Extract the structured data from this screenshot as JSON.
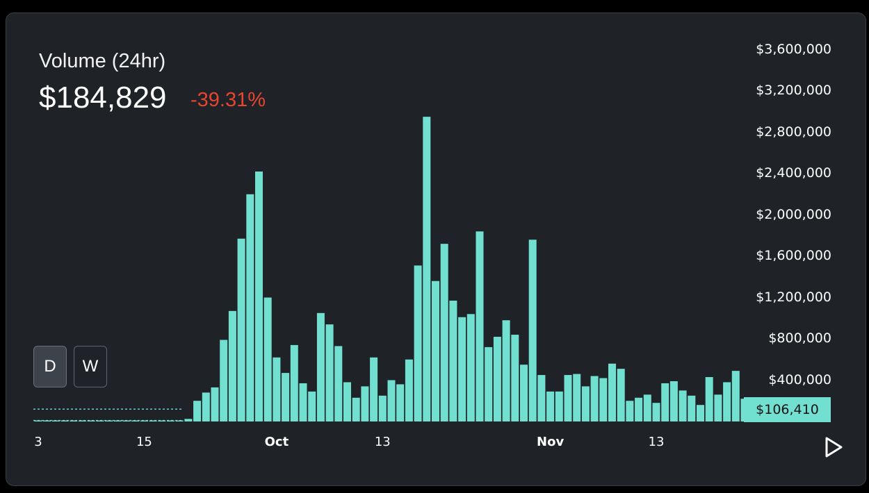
{
  "header": {
    "title": "Volume (24hr)",
    "value": "$184,829",
    "change": "-39.31%"
  },
  "timeframe": {
    "options": [
      "D",
      "W"
    ],
    "selected": "D"
  },
  "current_label": "$106,410",
  "colors": {
    "bar": "#72e0d1",
    "negative": "#e8452f",
    "background": "#1f2226"
  },
  "icons": {
    "play": "play-icon"
  },
  "chart_data": {
    "type": "bar",
    "title": "Volume (24hr)",
    "y_tick_labels": [
      "$3,600,000",
      "$3,200,000",
      "$2,800,000",
      "$2,400,000",
      "$2,000,000",
      "$1,600,000",
      "$1,200,000",
      "$800,000",
      "$400,000"
    ],
    "y_ticks": [
      3600000,
      3200000,
      2800000,
      2400000,
      2000000,
      1600000,
      1200000,
      800000,
      400000
    ],
    "x_tick_labels": [
      {
        "label": "3",
        "index": 0
      },
      {
        "label": "15",
        "index": 12
      },
      {
        "label": "Oct",
        "index": 27
      },
      {
        "label": "13",
        "index": 39
      },
      {
        "label": "Nov",
        "index": 58
      },
      {
        "label": "13",
        "index": 70
      }
    ],
    "ylim": [
      0,
      3750000
    ],
    "values": [
      10000,
      10000,
      10000,
      10000,
      10000,
      10000,
      10000,
      10000,
      10000,
      10000,
      10000,
      10000,
      10000,
      10000,
      10000,
      10000,
      10000,
      25000,
      200000,
      280000,
      330000,
      790000,
      1070000,
      1770000,
      2200000,
      2420000,
      1200000,
      620000,
      470000,
      740000,
      370000,
      290000,
      1050000,
      940000,
      730000,
      380000,
      230000,
      340000,
      620000,
      250000,
      400000,
      360000,
      600000,
      1510000,
      2950000,
      1360000,
      1720000,
      1170000,
      1010000,
      1040000,
      1840000,
      720000,
      820000,
      980000,
      840000,
      550000,
      1760000,
      450000,
      290000,
      290000,
      450000,
      460000,
      340000,
      440000,
      420000,
      560000,
      510000,
      200000,
      230000,
      260000,
      180000,
      370000,
      390000,
      300000,
      250000,
      160000,
      430000,
      260000,
      380000,
      490000,
      220000,
      150000,
      106410
    ],
    "reference_lines": [
      {
        "style": "dashed",
        "y": 120000
      },
      {
        "style": "dashed",
        "y": 10000
      }
    ]
  }
}
